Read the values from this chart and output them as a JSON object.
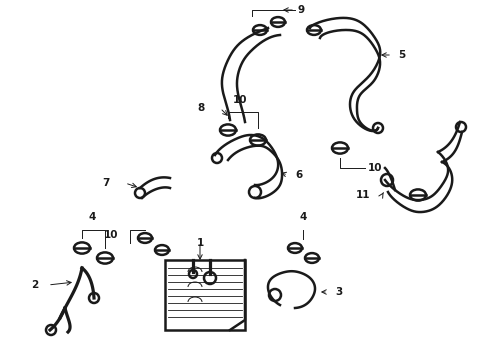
{
  "background_color": "#ffffff",
  "line_color": "#1a1a1a",
  "fig_width": 4.9,
  "fig_height": 3.6,
  "dpi": 100,
  "label_fontsize": 7.5,
  "lw_hose": 1.8,
  "lw_label": 0.7
}
